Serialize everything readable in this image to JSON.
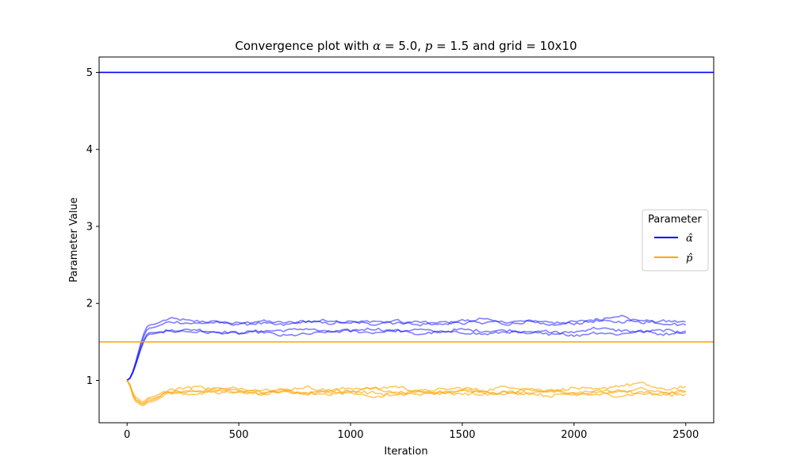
{
  "chart_data": {
    "type": "line",
    "title": {
      "prefix": "Convergence plot with ",
      "alpha_symbol": "α",
      "alpha_eq": " = 5.0, ",
      "p_symbol": "p",
      "p_eq": " = 1.5 and grid = 10x10"
    },
    "xlabel": "Iteration",
    "ylabel": "Parameter Value",
    "xlim": [
      -125,
      2625
    ],
    "ylim": [
      0.45,
      5.2
    ],
    "xticks": [
      0,
      500,
      1000,
      1500,
      2000,
      2500
    ],
    "yticks": [
      1,
      2,
      3,
      4,
      5
    ],
    "grid": false,
    "legend": {
      "title": "Parameter",
      "placement": "center-right",
      "entries": [
        {
          "symbol": "α̂",
          "color": "#0000ff"
        },
        {
          "symbol": "p̂",
          "color": "#ffa500"
        }
      ]
    },
    "reference_lines": [
      {
        "y": 5.0,
        "color": "#0000ff"
      },
      {
        "y": 1.5,
        "color": "#ffa500"
      }
    ],
    "series": [
      {
        "group": "alpha",
        "color": "#0000ff",
        "opacity": 0.5,
        "start": 1.0,
        "level": 1.78,
        "x": [
          0,
          100,
          200,
          300,
          400,
          500,
          600,
          700,
          800,
          900,
          1000,
          1100,
          1200,
          1300,
          1400,
          1500,
          1600,
          1700,
          1800,
          1900,
          2000,
          2100,
          2200,
          2300,
          2400,
          2500
        ],
        "y": [
          1.0,
          1.72,
          1.8,
          1.77,
          1.76,
          1.74,
          1.77,
          1.75,
          1.76,
          1.78,
          1.75,
          1.77,
          1.74,
          1.76,
          1.72,
          1.78,
          1.75,
          1.76,
          1.77,
          1.72,
          1.76,
          1.79,
          1.84,
          1.75,
          1.77,
          1.76
        ]
      },
      {
        "group": "alpha",
        "color": "#0000ff",
        "opacity": 0.5,
        "start": 1.0,
        "level": 1.74,
        "x": [
          0,
          100,
          200,
          300,
          400,
          500,
          600,
          700,
          800,
          900,
          1000,
          1100,
          1200,
          1300,
          1400,
          1500,
          1600,
          1700,
          1800,
          1900,
          2000,
          2100,
          2200,
          2300,
          2400,
          2500
        ],
        "y": [
          1.0,
          1.68,
          1.76,
          1.74,
          1.75,
          1.73,
          1.74,
          1.72,
          1.77,
          1.74,
          1.76,
          1.73,
          1.78,
          1.72,
          1.76,
          1.74,
          1.8,
          1.73,
          1.76,
          1.75,
          1.74,
          1.77,
          1.76,
          1.79,
          1.74,
          1.72
        ]
      },
      {
        "group": "alpha",
        "color": "#0000ff",
        "opacity": 0.5,
        "start": 1.0,
        "level": 1.64,
        "x": [
          0,
          100,
          200,
          300,
          400,
          500,
          600,
          700,
          800,
          900,
          1000,
          1100,
          1200,
          1300,
          1400,
          1500,
          1600,
          1700,
          1800,
          1900,
          2000,
          2100,
          2200,
          2300,
          2400,
          2500
        ],
        "y": [
          1.0,
          1.62,
          1.64,
          1.66,
          1.63,
          1.62,
          1.64,
          1.65,
          1.67,
          1.63,
          1.65,
          1.67,
          1.64,
          1.66,
          1.63,
          1.66,
          1.64,
          1.65,
          1.62,
          1.6,
          1.63,
          1.68,
          1.65,
          1.63,
          1.65,
          1.62
        ]
      },
      {
        "group": "alpha",
        "color": "#0000ff",
        "opacity": 0.5,
        "start": 1.0,
        "level": 1.62,
        "x": [
          0,
          100,
          200,
          300,
          400,
          500,
          600,
          700,
          800,
          900,
          1000,
          1100,
          1200,
          1300,
          1400,
          1500,
          1600,
          1700,
          1800,
          1900,
          2000,
          2100,
          2200,
          2300,
          2400,
          2500
        ],
        "y": [
          1.0,
          1.6,
          1.65,
          1.63,
          1.62,
          1.61,
          1.63,
          1.58,
          1.6,
          1.63,
          1.64,
          1.62,
          1.65,
          1.6,
          1.63,
          1.62,
          1.6,
          1.63,
          1.62,
          1.64,
          1.58,
          1.62,
          1.6,
          1.64,
          1.6,
          1.64
        ]
      },
      {
        "group": "p",
        "color": "#ffa500",
        "opacity": 0.6,
        "start": 1.0,
        "level": 0.88,
        "x": [
          0,
          40,
          70,
          100,
          200,
          300,
          400,
          500,
          600,
          700,
          800,
          900,
          1000,
          1100,
          1200,
          1300,
          1400,
          1500,
          1600,
          1700,
          1800,
          1900,
          2000,
          2100,
          2200,
          2300,
          2400,
          2500
        ],
        "y": [
          1.0,
          0.78,
          0.72,
          0.78,
          0.88,
          0.92,
          0.88,
          0.9,
          0.86,
          0.88,
          0.91,
          0.87,
          0.9,
          0.89,
          0.92,
          0.86,
          0.88,
          0.9,
          0.87,
          0.92,
          0.89,
          0.86,
          0.9,
          0.88,
          0.93,
          0.96,
          0.88,
          0.92
        ]
      },
      {
        "group": "p",
        "color": "#ffa500",
        "opacity": 0.6,
        "start": 1.0,
        "level": 0.85,
        "x": [
          0,
          40,
          70,
          100,
          200,
          300,
          400,
          500,
          600,
          700,
          800,
          900,
          1000,
          1100,
          1200,
          1300,
          1400,
          1500,
          1600,
          1700,
          1800,
          1900,
          2000,
          2100,
          2200,
          2300,
          2400,
          2500
        ],
        "y": [
          1.0,
          0.74,
          0.69,
          0.74,
          0.85,
          0.86,
          0.9,
          0.84,
          0.88,
          0.85,
          0.83,
          0.87,
          0.85,
          0.9,
          0.84,
          0.86,
          0.83,
          0.88,
          0.85,
          0.84,
          0.88,
          0.86,
          0.83,
          0.87,
          0.85,
          0.89,
          0.84,
          0.86
        ]
      },
      {
        "group": "p",
        "color": "#ffa500",
        "opacity": 0.6,
        "start": 1.0,
        "level": 0.84,
        "x": [
          0,
          40,
          70,
          100,
          200,
          300,
          400,
          500,
          600,
          700,
          800,
          900,
          1000,
          1100,
          1200,
          1300,
          1400,
          1500,
          1600,
          1700,
          1800,
          1900,
          2000,
          2100,
          2200,
          2300,
          2400,
          2500
        ],
        "y": [
          1.0,
          0.72,
          0.67,
          0.72,
          0.83,
          0.87,
          0.84,
          0.88,
          0.83,
          0.86,
          0.84,
          0.82,
          0.86,
          0.84,
          0.8,
          0.85,
          0.83,
          0.86,
          0.82,
          0.85,
          0.83,
          0.8,
          0.84,
          0.82,
          0.86,
          0.84,
          0.83,
          0.85
        ]
      },
      {
        "group": "p",
        "color": "#ffa500",
        "opacity": 0.6,
        "start": 1.0,
        "level": 0.82,
        "x": [
          0,
          40,
          70,
          100,
          200,
          300,
          400,
          500,
          600,
          700,
          800,
          900,
          1000,
          1100,
          1200,
          1300,
          1400,
          1500,
          1600,
          1700,
          1800,
          1900,
          2000,
          2100,
          2200,
          2300,
          2400,
          2500
        ],
        "y": [
          1.0,
          0.75,
          0.7,
          0.76,
          0.84,
          0.82,
          0.87,
          0.85,
          0.82,
          0.87,
          0.82,
          0.85,
          0.83,
          0.78,
          0.84,
          0.81,
          0.85,
          0.82,
          0.86,
          0.82,
          0.84,
          0.86,
          0.81,
          0.84,
          0.8,
          0.83,
          0.81,
          0.82
        ]
      }
    ]
  }
}
